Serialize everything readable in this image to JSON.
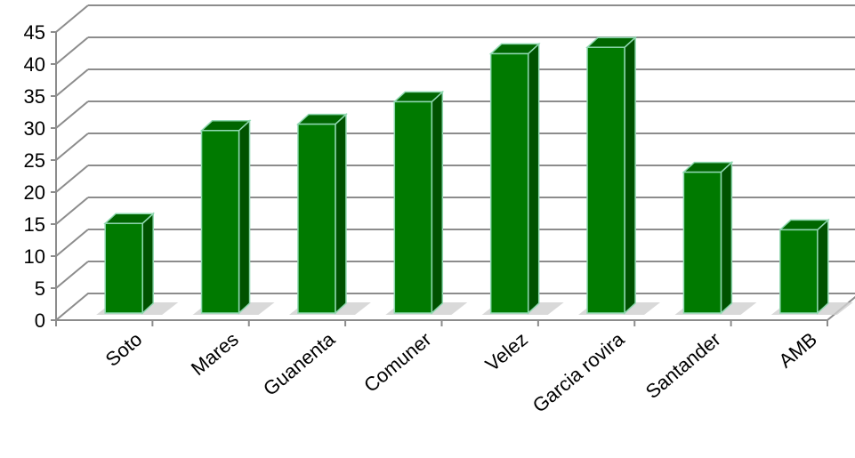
{
  "chart_data": {
    "type": "bar",
    "categories": [
      "Soto",
      "Mares",
      "Guanenta",
      "Comuner",
      "Velez",
      "Garcia rovira",
      "Santander",
      "AMB"
    ],
    "values": [
      14,
      28.5,
      29.5,
      33,
      40.5,
      41.5,
      22,
      13
    ],
    "yticks": [
      "0",
      "5",
      "10",
      "15",
      "20",
      "25",
      "30",
      "35",
      "40",
      "45"
    ],
    "ylim": [
      0,
      45
    ],
    "grid": true,
    "legend": "none",
    "colors": {
      "bar_front": "#007a00",
      "bar_side": "#005200",
      "bar_top": "#006600",
      "bar_edge": "#8fd8b0",
      "grid": "#8c8c8c",
      "floor_shadow": "#cfcfcf"
    }
  }
}
